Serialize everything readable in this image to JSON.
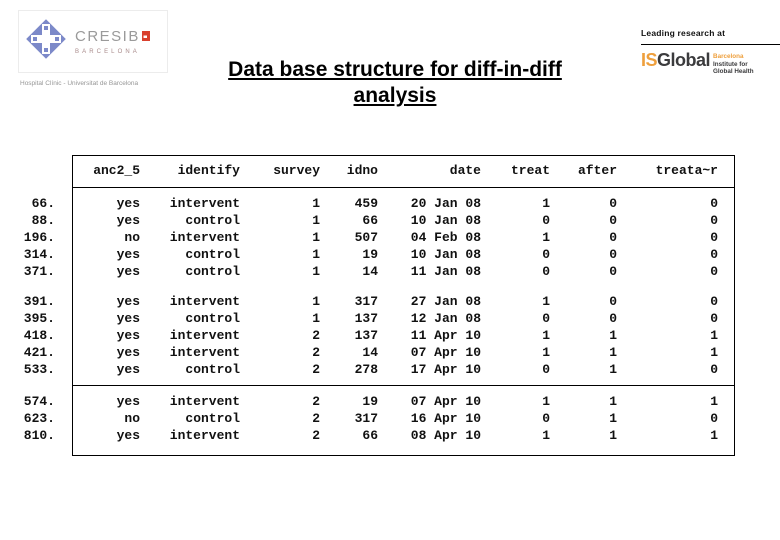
{
  "header": {
    "cresib": {
      "name": "CRESIB",
      "city": "BARCELONA",
      "subtitle": "Hospital Clínic - Universitat de Barcelona"
    },
    "title_lines": [
      "Data base structure for diff-in-diff",
      "analysis"
    ],
    "isglobal": {
      "tagline": "Leading research at",
      "brand_is": "IS",
      "brand_global": "Global",
      "sub1": "Barcelona",
      "sub2": "Institute for",
      "sub3": "Global Health"
    }
  },
  "colors": {
    "cresib_blue": "#7c89c9",
    "cresib_red": "#d9402e",
    "cresib_gray": "#9a9a9a",
    "isglobal_orange": "#ee9f3c",
    "isglobal_dark": "#3b3b3d",
    "table_border": "#000000"
  },
  "table": {
    "headers": [
      "anc2_5",
      "identify",
      "survey",
      "idno",
      "date",
      "treat",
      "after",
      "treata~r"
    ],
    "blocks": [
      {
        "divider_after": false,
        "rows": [
          {
            "n": "66.",
            "cells": [
              "yes",
              "intervent",
              "1",
              "459",
              "20 Jan 08",
              "1",
              "0",
              "0"
            ]
          },
          {
            "n": "88.",
            "cells": [
              "yes",
              "control",
              "1",
              "66",
              "10 Jan 08",
              "0",
              "0",
              "0"
            ]
          },
          {
            "n": "196.",
            "cells": [
              "no",
              "intervent",
              "1",
              "507",
              "04 Feb 08",
              "1",
              "0",
              "0"
            ]
          },
          {
            "n": "314.",
            "cells": [
              "yes",
              "control",
              "1",
              "19",
              "10 Jan 08",
              "0",
              "0",
              "0"
            ]
          },
          {
            "n": "371.",
            "cells": [
              "yes",
              "control",
              "1",
              "14",
              "11 Jan 08",
              "0",
              "0",
              "0"
            ]
          }
        ]
      },
      {
        "divider_after": true,
        "rows": [
          {
            "n": "391.",
            "cells": [
              "yes",
              "intervent",
              "1",
              "317",
              "27 Jan 08",
              "1",
              "0",
              "0"
            ]
          },
          {
            "n": "395.",
            "cells": [
              "yes",
              "control",
              "1",
              "137",
              "12 Jan 08",
              "0",
              "0",
              "0"
            ]
          },
          {
            "n": "418.",
            "cells": [
              "yes",
              "intervent",
              "2",
              "137",
              "11 Apr 10",
              "1",
              "1",
              "1"
            ]
          },
          {
            "n": "421.",
            "cells": [
              "yes",
              "intervent",
              "2",
              "14",
              "07 Apr 10",
              "1",
              "1",
              "1"
            ]
          },
          {
            "n": "533.",
            "cells": [
              "yes",
              "control",
              "2",
              "278",
              "17 Apr 10",
              "0",
              "1",
              "0"
            ]
          }
        ]
      },
      {
        "divider_after": false,
        "rows": [
          {
            "n": "574.",
            "cells": [
              "yes",
              "intervent",
              "2",
              "19",
              "07 Apr 10",
              "1",
              "1",
              "1"
            ]
          },
          {
            "n": "623.",
            "cells": [
              "no",
              "control",
              "2",
              "317",
              "16 Apr 10",
              "0",
              "1",
              "0"
            ]
          },
          {
            "n": "810.",
            "cells": [
              "yes",
              "intervent",
              "2",
              "66",
              "08 Apr 10",
              "1",
              "1",
              "1"
            ]
          }
        ]
      }
    ]
  }
}
